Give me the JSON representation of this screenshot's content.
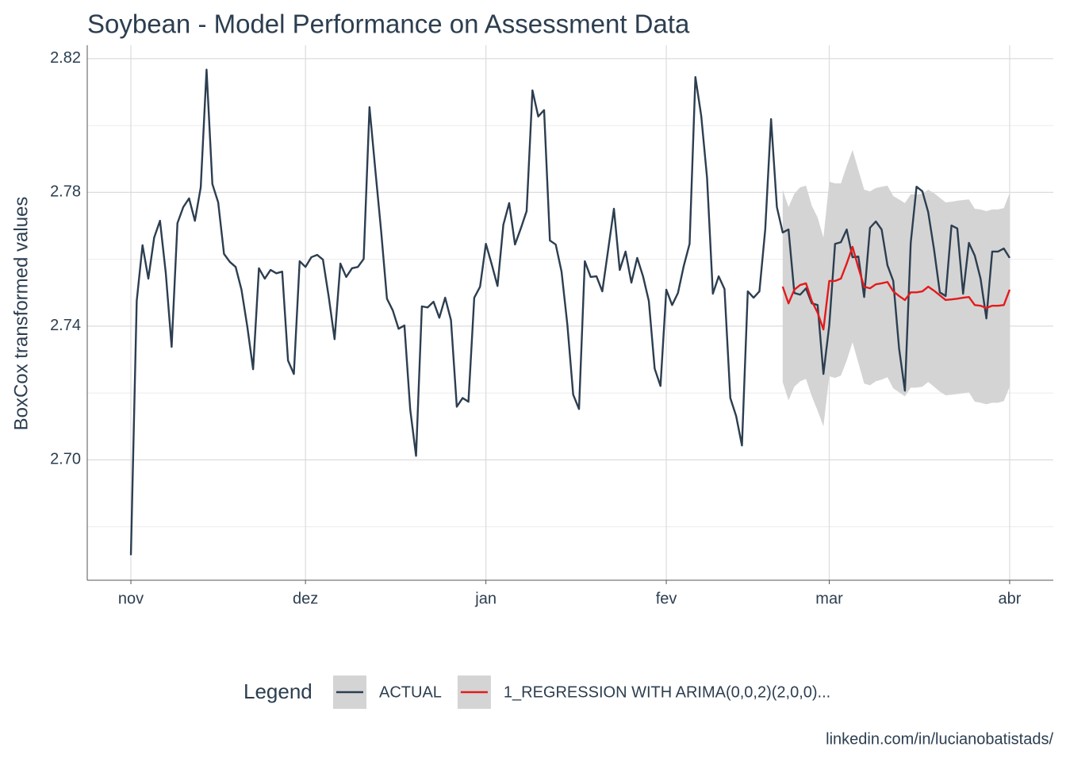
{
  "chart_data": {
    "type": "line",
    "title": "Soybean - Model Performance on Assessment Data",
    "y_label": "BoxCox transformed values",
    "legend_title": "Legend",
    "caption": "linkedin.com/in/lucianobatistads/",
    "xlim": [
      -7.5,
      158.5
    ],
    "xticks": [
      {
        "value": 0,
        "label": "nov"
      },
      {
        "value": 30,
        "label": "dez"
      },
      {
        "value": 61,
        "label": "jan"
      },
      {
        "value": 92,
        "label": "fev"
      },
      {
        "value": 120,
        "label": "mar"
      },
      {
        "value": 151,
        "label": "abr"
      }
    ],
    "ylim": [
      2.664,
      2.824
    ],
    "yticks": [
      {
        "value": 2.7,
        "label": "2.70"
      },
      {
        "value": 2.74,
        "label": "2.74"
      },
      {
        "value": 2.78,
        "label": "2.78"
      },
      {
        "value": 2.82,
        "label": "2.82"
      }
    ],
    "y_minor_grid": [
      2.68,
      2.72,
      2.76,
      2.8
    ],
    "grid": true,
    "legend_position": "bottom",
    "band_color": "#d4d4d4",
    "series": [
      {
        "name": "ACTUAL",
        "color": "#2c3e50",
        "x": [
          0,
          1,
          2,
          3,
          4,
          5,
          6,
          7,
          8,
          9,
          10,
          11,
          12,
          13,
          14,
          15,
          16,
          17,
          18,
          19,
          20,
          21,
          22,
          23,
          24,
          25,
          26,
          27,
          28,
          29,
          30,
          31,
          32,
          33,
          34,
          35,
          36,
          37,
          38,
          39,
          40,
          41,
          42,
          43,
          44,
          45,
          46,
          47,
          48,
          49,
          50,
          51,
          52,
          53,
          54,
          55,
          56,
          57,
          58,
          59,
          60,
          61,
          62,
          63,
          64,
          65,
          66,
          67,
          68,
          69,
          70,
          71,
          72,
          73,
          74,
          75,
          76,
          77,
          78,
          79,
          80,
          81,
          82,
          83,
          84,
          85,
          86,
          87,
          88,
          89,
          90,
          91,
          92,
          93,
          94,
          95,
          96,
          97,
          98,
          99,
          100,
          101,
          102,
          103,
          104,
          105,
          106,
          107,
          108,
          109,
          110,
          111,
          112,
          113,
          114,
          115,
          116,
          117,
          118,
          119,
          120,
          121,
          122,
          123,
          124,
          125,
          126,
          127,
          128,
          129,
          130,
          131,
          132,
          133,
          134,
          135,
          136,
          137,
          138,
          139,
          140,
          141,
          142,
          143,
          144,
          145,
          146,
          147,
          148,
          149,
          150,
          151
        ],
        "values": [
          2.6715,
          2.7475,
          2.7642,
          2.7542,
          2.7665,
          2.7715,
          2.7558,
          2.7338,
          2.7708,
          2.7756,
          2.7782,
          2.7715,
          2.7815,
          2.8167,
          2.7825,
          2.777,
          2.7616,
          2.7592,
          2.7577,
          2.7509,
          2.7399,
          2.7271,
          2.7573,
          2.7542,
          2.7568,
          2.7558,
          2.7563,
          2.7297,
          2.7257,
          2.7594,
          2.7577,
          2.7606,
          2.7613,
          2.7599,
          2.7487,
          2.7361,
          2.7587,
          2.7547,
          2.7573,
          2.7577,
          2.7601,
          2.8055,
          2.7867,
          2.7684,
          2.7482,
          2.7447,
          2.7392,
          2.7402,
          2.715,
          2.7012,
          2.7459,
          2.7456,
          2.7473,
          2.7425,
          2.7485,
          2.7418,
          2.7159,
          2.7185,
          2.7174,
          2.7485,
          2.7518,
          2.7646,
          2.7585,
          2.752,
          2.7703,
          2.7768,
          2.7644,
          2.7692,
          2.7744,
          2.8105,
          2.8027,
          2.8046,
          2.7656,
          2.7644,
          2.7563,
          2.7404,
          2.7195,
          2.7152,
          2.7594,
          2.7547,
          2.7549,
          2.7504,
          2.7627,
          2.7751,
          2.7568,
          2.7623,
          2.753,
          2.7604,
          2.7549,
          2.7475,
          2.7273,
          2.7221,
          2.7509,
          2.7463,
          2.7499,
          2.758,
          2.7646,
          2.8145,
          2.8029,
          2.7844,
          2.7497,
          2.7549,
          2.7511,
          2.7185,
          2.7131,
          2.7043,
          2.7504,
          2.7485,
          2.7504,
          2.7689,
          2.8019,
          2.7756,
          2.768,
          2.7689,
          2.7499,
          2.7494,
          2.7513,
          2.7468,
          2.7463,
          2.7257,
          2.7402,
          2.7646,
          2.7651,
          2.7689,
          2.7606,
          2.7608,
          2.7487,
          2.7694,
          2.7713,
          2.7689,
          2.7582,
          2.7535,
          2.7333,
          2.7207,
          2.7649,
          2.7817,
          2.7803,
          2.7741,
          2.763,
          2.7501,
          2.749,
          2.7701,
          2.7692,
          2.7497,
          2.7649,
          2.7611,
          2.7542,
          2.7423,
          2.7623,
          2.7623,
          2.7632,
          2.7604
        ]
      },
      {
        "name": "1_REGRESSION WITH ARIMA(0,0,2)(2,0,0)...",
        "color": "#e41a1c",
        "x": [
          112,
          113,
          114,
          115,
          116,
          117,
          118,
          119,
          120,
          121,
          122,
          123,
          124,
          125,
          126,
          127,
          128,
          129,
          130,
          131,
          132,
          133,
          134,
          135,
          136,
          137,
          138,
          139,
          140,
          141,
          142,
          143,
          144,
          145,
          146,
          147,
          148,
          149,
          150,
          151
        ],
        "values": [
          2.7518,
          2.7468,
          2.7509,
          2.7523,
          2.7528,
          2.7475,
          2.744,
          2.739,
          2.7535,
          2.7535,
          2.7542,
          2.7587,
          2.7637,
          2.7575,
          2.7518,
          2.7513,
          2.7525,
          2.7528,
          2.7532,
          2.7504,
          2.749,
          2.7478,
          2.7501,
          2.7501,
          2.7504,
          2.7518,
          2.7506,
          2.7492,
          2.7478,
          2.748,
          2.7482,
          2.7485,
          2.7487,
          2.7463,
          2.7461,
          2.7454,
          2.7461,
          2.7461,
          2.7463,
          2.7509
        ],
        "upper": [
          2.7808,
          2.7756,
          2.7796,
          2.7815,
          2.782,
          2.776,
          2.7725,
          2.7665,
          2.7832,
          2.7827,
          2.7827,
          2.7879,
          2.7927,
          2.7867,
          2.7808,
          2.7803,
          2.7813,
          2.7817,
          2.782,
          2.7789,
          2.7779,
          2.7768,
          2.7794,
          2.7794,
          2.7796,
          2.7808,
          2.7798,
          2.7784,
          2.777,
          2.7772,
          2.7775,
          2.7777,
          2.7779,
          2.7751,
          2.7749,
          2.7744,
          2.7749,
          2.7749,
          2.7753,
          2.7798
        ],
        "lower": [
          2.7233,
          2.7178,
          2.7219,
          2.7235,
          2.7242,
          2.719,
          2.7147,
          2.71,
          2.725,
          2.7245,
          2.7252,
          2.7297,
          2.7352,
          2.729,
          2.7228,
          2.7223,
          2.7235,
          2.724,
          2.7247,
          2.7214,
          2.7202,
          2.719,
          2.7216,
          2.7216,
          2.7219,
          2.7233,
          2.7219,
          2.7204,
          2.7193,
          2.7195,
          2.7197,
          2.7199,
          2.7202,
          2.7174,
          2.7171,
          2.7166,
          2.7171,
          2.7171,
          2.7176,
          2.7219
        ]
      }
    ]
  }
}
